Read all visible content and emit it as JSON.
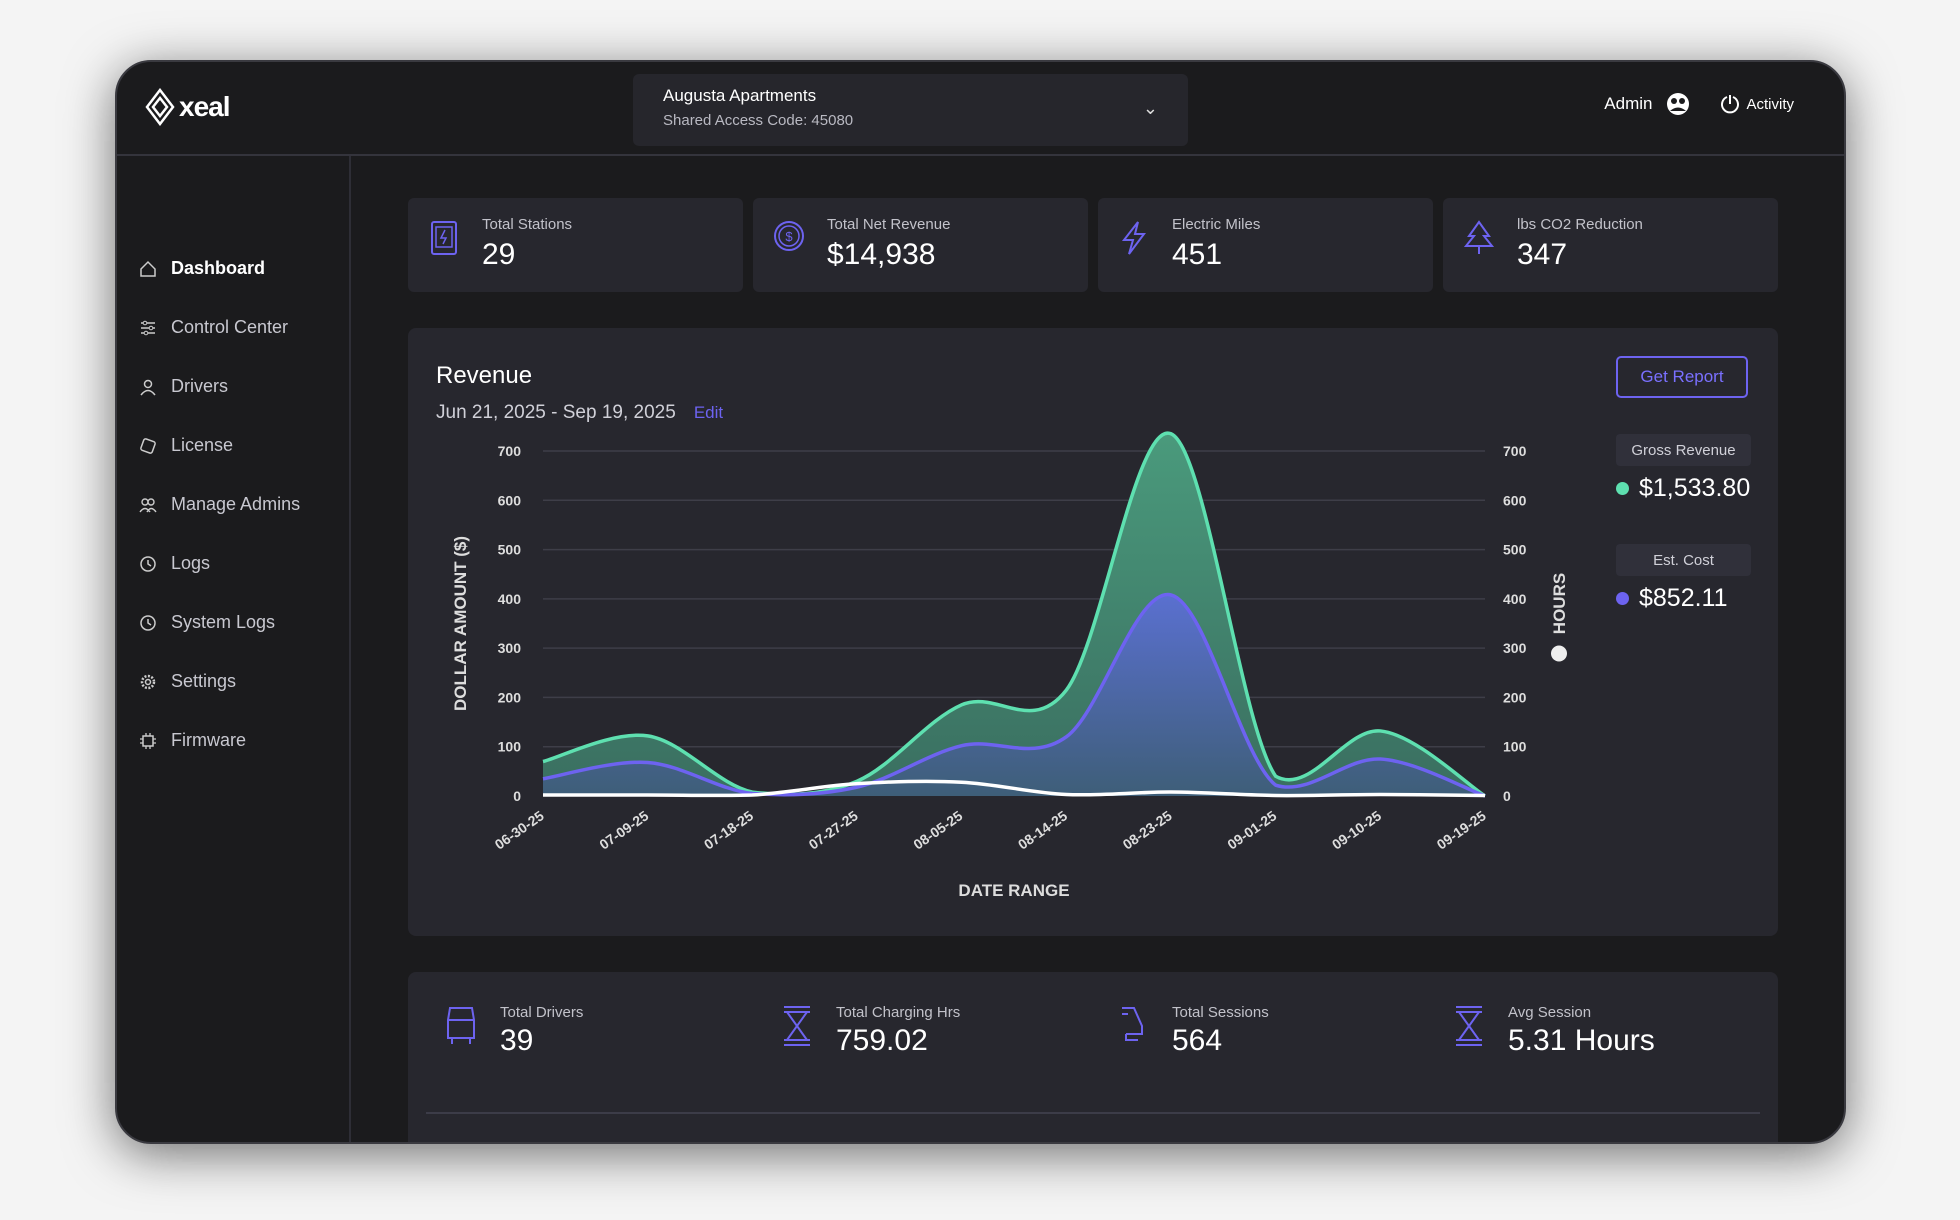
{
  "app": {
    "logo": "xeal"
  },
  "header": {
    "site_name": "Augusta Apartments",
    "access_code": "Shared Access Code: 45080",
    "user": "Admin",
    "activity": "Activity"
  },
  "sidebar": {
    "items": [
      {
        "label": "Dashboard",
        "icon": "home-icon",
        "active": true
      },
      {
        "label": "Control Center",
        "icon": "sliders-icon"
      },
      {
        "label": "Drivers",
        "icon": "user-icon"
      },
      {
        "label": "License",
        "icon": "license-icon"
      },
      {
        "label": "Manage Admins",
        "icon": "users-icon"
      },
      {
        "label": "Logs",
        "icon": "clock-icon"
      },
      {
        "label": "System Logs",
        "icon": "clock-icon"
      },
      {
        "label": "Settings",
        "icon": "gear-icon"
      },
      {
        "label": "Firmware",
        "icon": "chip-icon"
      }
    ]
  },
  "cards": [
    {
      "label": "Total Stations",
      "value": "29",
      "icon": "charging-station-icon"
    },
    {
      "label": "Total Net Revenue",
      "value": "$14,938",
      "icon": "dollar-coin-icon"
    },
    {
      "label": "Electric Miles",
      "value": "451",
      "icon": "lightning-icon"
    },
    {
      "label": "lbs CO2 Reduction",
      "value": "347",
      "icon": "tree-icon"
    }
  ],
  "revenue": {
    "title": "Revenue",
    "date_range": "Jun 21, 2025 - Sep 19, 2025",
    "edit": "Edit",
    "get_report": "Get Report",
    "legend": [
      {
        "label": "Gross Revenue",
        "value": "$1,533.80",
        "color": "#5ee0b0"
      },
      {
        "label": "Est. Cost",
        "value": "$852.11",
        "color": "#6d63f0"
      }
    ]
  },
  "chart_data": {
    "type": "area",
    "xlabel": "DATE RANGE",
    "ylabel": "DOLLAR AMOUNT ($)",
    "y2label": "HOURS",
    "categories": [
      "06-30-25",
      "07-09-25",
      "07-18-25",
      "07-27-25",
      "08-05-25",
      "08-14-25",
      "08-23-25",
      "09-01-25",
      "09-10-25",
      "09-19-25"
    ],
    "yticks": [
      0,
      100,
      200,
      300,
      400,
      500,
      600,
      700
    ],
    "ylim": [
      0,
      700
    ],
    "y2lim": [
      0,
      700
    ],
    "grid": true,
    "series": [
      {
        "name": "Gross Revenue",
        "color": "#5ee0b0",
        "values": [
          70,
          122,
          8,
          30,
          185,
          215,
          735,
          40,
          132,
          0
        ]
      },
      {
        "name": "Est. Cost",
        "color": "#6d63f0",
        "values": [
          35,
          68,
          5,
          18,
          102,
          120,
          408,
          22,
          75,
          0
        ]
      },
      {
        "name": "HOURS",
        "color": "#ffffff",
        "values": [
          2,
          2,
          2,
          25,
          28,
          3,
          8,
          1,
          3,
          1
        ]
      }
    ]
  },
  "stats": [
    {
      "label": "Total Drivers",
      "value": "39",
      "icon": "car-icon"
    },
    {
      "label": "Total Charging Hrs",
      "value": "759.02",
      "icon": "hourglass-icon"
    },
    {
      "label": "Total Sessions",
      "value": "564",
      "icon": "charger-plug-icon"
    },
    {
      "label": "Avg Session",
      "value": "5.31 Hours",
      "icon": "hourglass-icon"
    }
  ]
}
